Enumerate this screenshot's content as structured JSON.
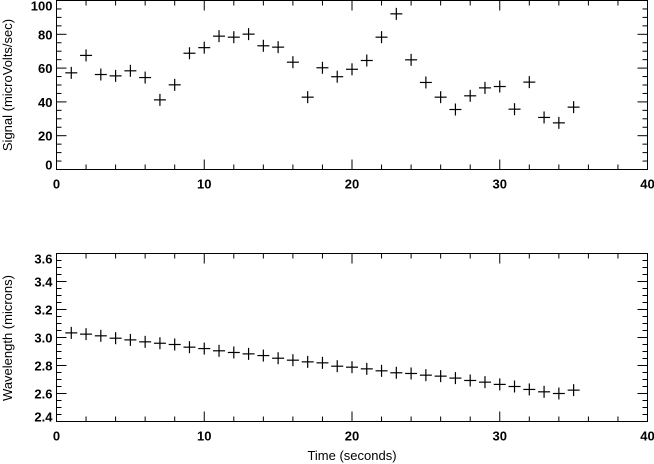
{
  "chart_data": [
    {
      "type": "scatter",
      "title": "",
      "xlabel": "",
      "ylabel": "Signal (microVolts/sec)",
      "xlim": [
        0,
        40
      ],
      "ylim": [
        0,
        100
      ],
      "xticks": [
        0,
        10,
        20,
        30,
        40
      ],
      "yticks": [
        0,
        20,
        40,
        60,
        80,
        100
      ],
      "xtick_labels": [
        "0",
        "10",
        "20",
        "30",
        "40"
      ],
      "ytick_labels": [
        "0",
        "20",
        "40",
        "60",
        "80",
        "100"
      ],
      "marker": "+",
      "grid": false,
      "legend": null,
      "x": [
        1,
        2,
        3,
        4,
        5,
        6,
        7,
        8,
        9,
        10,
        11,
        12,
        13,
        14,
        15,
        16,
        17,
        18,
        19,
        20,
        21,
        22,
        23,
        24,
        25,
        26,
        27,
        28,
        29,
        30,
        31,
        32,
        33,
        34,
        35
      ],
      "y": [
        57.2,
        67.5,
        56.2,
        55.4,
        58.4,
        54.4,
        41.2,
        50.1,
        68.8,
        72.1,
        78.9,
        78.3,
        80.1,
        73.2,
        72.4,
        63.5,
        42.8,
        60.2,
        54.9,
        59.3,
        64.5,
        78.3,
        92.1,
        64.9,
        51.5,
        42.8,
        35.5,
        43.6,
        48.3,
        49.1,
        35.7,
        51.7,
        30.8,
        27.6,
        36.9
      ]
    },
    {
      "type": "scatter",
      "title": "",
      "xlabel": "Time (seconds)",
      "ylabel": "Wavelength (microns)",
      "xlim": [
        0,
        40
      ],
      "ylim": [
        2.4,
        3.6
      ],
      "xticks": [
        0,
        10,
        20,
        30,
        40
      ],
      "yticks": [
        2.4,
        2.6,
        2.8,
        3.0,
        3.2,
        3.4,
        3.6
      ],
      "xtick_labels": [
        "0",
        "10",
        "20",
        "30",
        "40"
      ],
      "ytick_labels": [
        "2.4",
        "2.6",
        "2.8",
        "3.0",
        "3.2",
        "3.4",
        "3.6"
      ],
      "marker": "+",
      "grid": false,
      "legend": null,
      "x": [
        1,
        2,
        3,
        4,
        5,
        6,
        7,
        8,
        9,
        10,
        11,
        12,
        13,
        14,
        15,
        16,
        17,
        18,
        19,
        20,
        21,
        22,
        23,
        24,
        25,
        26,
        27,
        28,
        29,
        30,
        31,
        32,
        33,
        34,
        35
      ],
      "y": [
        3.033,
        3.024,
        3.012,
        2.995,
        2.983,
        2.969,
        2.959,
        2.95,
        2.931,
        2.921,
        2.905,
        2.893,
        2.883,
        2.871,
        2.852,
        2.838,
        2.826,
        2.819,
        2.795,
        2.788,
        2.776,
        2.762,
        2.748,
        2.743,
        2.731,
        2.724,
        2.71,
        2.693,
        2.681,
        2.665,
        2.65,
        2.629,
        2.612,
        2.6,
        2.624
      ]
    }
  ],
  "panels": {
    "top": {
      "ylabel": "Signal (microVolts/sec)"
    },
    "bottom": {
      "ylabel": "Wavelength (microns)",
      "xlabel": "Time (seconds)"
    }
  },
  "colors": {
    "foreground": "#000000",
    "background": "#ffffff"
  }
}
